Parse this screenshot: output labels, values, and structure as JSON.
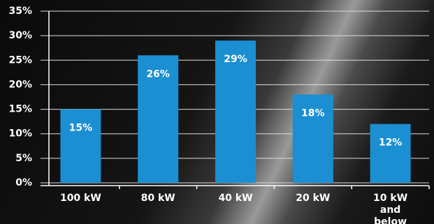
{
  "chart_data": {
    "type": "bar",
    "categories": [
      "100 kW",
      "80 kW",
      "40 kW",
      "20 kW",
      "10 kW and below"
    ],
    "values": [
      15,
      26,
      29,
      18,
      12
    ],
    "value_labels": [
      "15%",
      "26%",
      "29%",
      "18%",
      "12%"
    ],
    "color": "#1b8fd2",
    "ylim": [
      0,
      35
    ],
    "yticks": [
      {
        "value": 0,
        "label": "0%"
      },
      {
        "value": 5,
        "label": "5%"
      },
      {
        "value": 10,
        "label": "10%"
      },
      {
        "value": 15,
        "label": "15%"
      },
      {
        "value": 20,
        "label": "20%"
      },
      {
        "value": 25,
        "label": "25%"
      },
      {
        "value": 30,
        "label": "30%"
      },
      {
        "value": 35,
        "label": "35%"
      }
    ],
    "grid": true
  }
}
